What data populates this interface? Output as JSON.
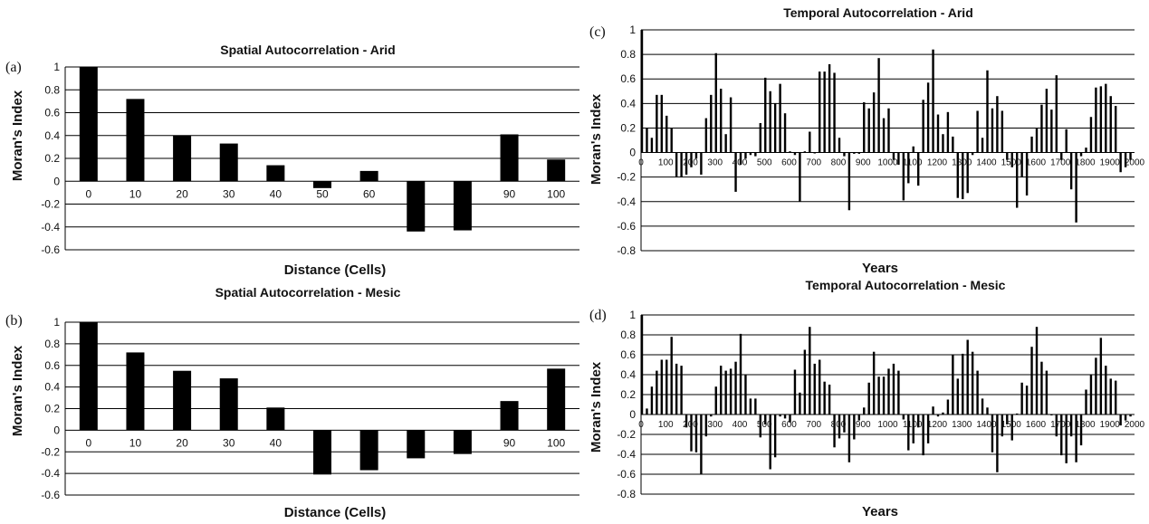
{
  "chart_data": [
    {
      "panel": "(a)",
      "type": "bar",
      "title": "Spatial Autocorrelation - Arid",
      "xlabel": "Distance (Cells)",
      "ylabel": "Moran's Index",
      "ylim": [
        -0.6,
        1
      ],
      "ytick_labels": [
        "1",
        "0.8",
        "0.6",
        "0.4",
        "0.2",
        "0",
        "-0.2",
        "-0.4",
        "-0.6"
      ],
      "categories": [
        "0",
        "10",
        "20",
        "30",
        "40",
        "50",
        "60",
        "70",
        "80",
        "90",
        "100"
      ],
      "category_labels": [
        "0",
        "10",
        "20",
        "30",
        "40",
        "50",
        "60",
        "",
        "",
        "90",
        "100"
      ],
      "values": [
        1.0,
        0.72,
        0.4,
        0.33,
        0.14,
        -0.06,
        0.09,
        -0.44,
        -0.43,
        0.41,
        0.19
      ]
    },
    {
      "panel": "(b)",
      "type": "bar",
      "title": "Spatial Autocorrelation - Mesic",
      "xlabel": "Distance (Cells)",
      "ylabel": "Moran's Index",
      "ylim": [
        -0.6,
        1
      ],
      "ytick_labels": [
        "1",
        "0.8",
        "0.6",
        "0.4",
        "0.2",
        "0",
        "-0.2",
        "-0.4",
        "-0.6"
      ],
      "categories": [
        "0",
        "10",
        "20",
        "30",
        "40",
        "50",
        "60",
        "70",
        "80",
        "90",
        "100"
      ],
      "category_labels": [
        "0",
        "10",
        "20",
        "30",
        "40",
        "",
        "",
        "",
        "",
        "90",
        "100"
      ],
      "values": [
        1.0,
        0.72,
        0.55,
        0.48,
        0.21,
        -0.41,
        -0.37,
        -0.26,
        -0.22,
        0.27,
        0.57
      ]
    },
    {
      "panel": "(c)",
      "type": "bar",
      "title": "Temporal Autocorrelation - Arid",
      "xlabel": "Years",
      "ylabel": "Moran's Index",
      "ylim": [
        -0.8,
        1
      ],
      "ytick_labels": [
        "1",
        "0.8",
        "0.6",
        "0.4",
        "0.2",
        "0",
        "-0.2",
        "-0.4",
        "-0.6",
        "-0.8"
      ],
      "x_tick_labels": [
        "0",
        "100",
        "200",
        "300",
        "400",
        "500",
        "600",
        "700",
        "800",
        "900",
        "1000",
        "1100",
        "1200",
        "1300",
        "1400",
        "1500",
        "1600",
        "1700",
        "1800",
        "1900",
        "2000"
      ],
      "x_step": 20,
      "x_max": 2000,
      "values": [
        1.0,
        0.2,
        0.12,
        0.47,
        0.47,
        0.3,
        0.2,
        -0.2,
        -0.2,
        -0.18,
        -0.12,
        -0.05,
        -0.18,
        0.28,
        0.47,
        0.81,
        0.52,
        0.15,
        0.45,
        -0.32,
        -0.1,
        -0.05,
        -0.02,
        -0.03,
        0.24,
        0.61,
        0.5,
        0.4,
        0.56,
        0.32,
        0.01,
        -0.02,
        -0.4,
        0.01,
        0.17,
        0.0,
        0.66,
        0.66,
        0.72,
        0.65,
        0.12,
        -0.03,
        -0.47,
        -0.01,
        -0.01,
        0.41,
        0.36,
        0.49,
        0.77,
        0.28,
        0.36,
        -0.06,
        -0.1,
        -0.39,
        -0.25,
        0.05,
        -0.27,
        0.43,
        0.57,
        0.84,
        0.31,
        0.15,
        0.33,
        0.13,
        -0.37,
        -0.38,
        -0.33,
        -0.02,
        0.34,
        0.12,
        0.67,
        0.36,
        0.46,
        0.34,
        -0.06,
        -0.12,
        -0.45,
        -0.2,
        -0.35,
        0.13,
        0.2,
        0.39,
        0.52,
        0.35,
        0.63,
        -0.06,
        0.19,
        -0.3,
        -0.57,
        -0.03,
        0.04,
        0.29,
        0.53,
        0.54,
        0.56,
        0.46,
        0.38,
        -0.16,
        -0.12,
        -0.06
      ]
    },
    {
      "panel": "(d)",
      "type": "bar",
      "title": "Temporal Autocorrelation - Mesic",
      "xlabel": "Years",
      "ylabel": "Moran's Index",
      "ylim": [
        -0.8,
        1
      ],
      "ytick_labels": [
        "1",
        "0.8",
        "0.6",
        "0.4",
        "0.2",
        "0",
        "-0.2",
        "-0.4",
        "-0.6",
        "-0.8"
      ],
      "x_tick_labels": [
        "0",
        "100",
        "200",
        "300",
        "400",
        "500",
        "600",
        "700",
        "800",
        "900",
        "1000",
        "1100",
        "1200",
        "1300",
        "1400",
        "1500",
        "1600",
        "1700",
        "1800",
        "1900",
        "2000"
      ],
      "x_step": 20,
      "x_max": 2000,
      "values": [
        1.0,
        0.06,
        0.28,
        0.44,
        0.55,
        0.55,
        0.78,
        0.51,
        0.49,
        -0.13,
        -0.37,
        -0.38,
        -0.6,
        -0.22,
        -0.02,
        0.28,
        0.49,
        0.44,
        0.46,
        0.53,
        0.81,
        0.4,
        0.16,
        0.16,
        -0.23,
        -0.1,
        -0.55,
        -0.43,
        -0.02,
        -0.04,
        -0.08,
        0.45,
        0.22,
        0.65,
        0.88,
        0.51,
        0.55,
        0.33,
        0.3,
        -0.33,
        -0.24,
        -0.18,
        -0.48,
        -0.25,
        -0.06,
        0.07,
        0.32,
        0.63,
        0.38,
        0.38,
        0.46,
        0.51,
        0.44,
        -0.05,
        -0.36,
        -0.29,
        -0.13,
        -0.41,
        -0.29,
        0.08,
        -0.02,
        0.02,
        0.15,
        0.6,
        0.36,
        0.61,
        0.75,
        0.63,
        0.44,
        0.16,
        0.07,
        -0.38,
        -0.58,
        -0.22,
        -0.1,
        -0.26,
        0.01,
        0.32,
        0.29,
        0.68,
        0.88,
        0.53,
        0.44,
        0.0,
        -0.22,
        -0.41,
        -0.49,
        -0.22,
        -0.48,
        -0.31,
        0.25,
        0.4,
        0.57,
        0.77,
        0.49,
        0.36,
        0.34,
        -0.11,
        -0.06,
        -0.02
      ]
    }
  ]
}
